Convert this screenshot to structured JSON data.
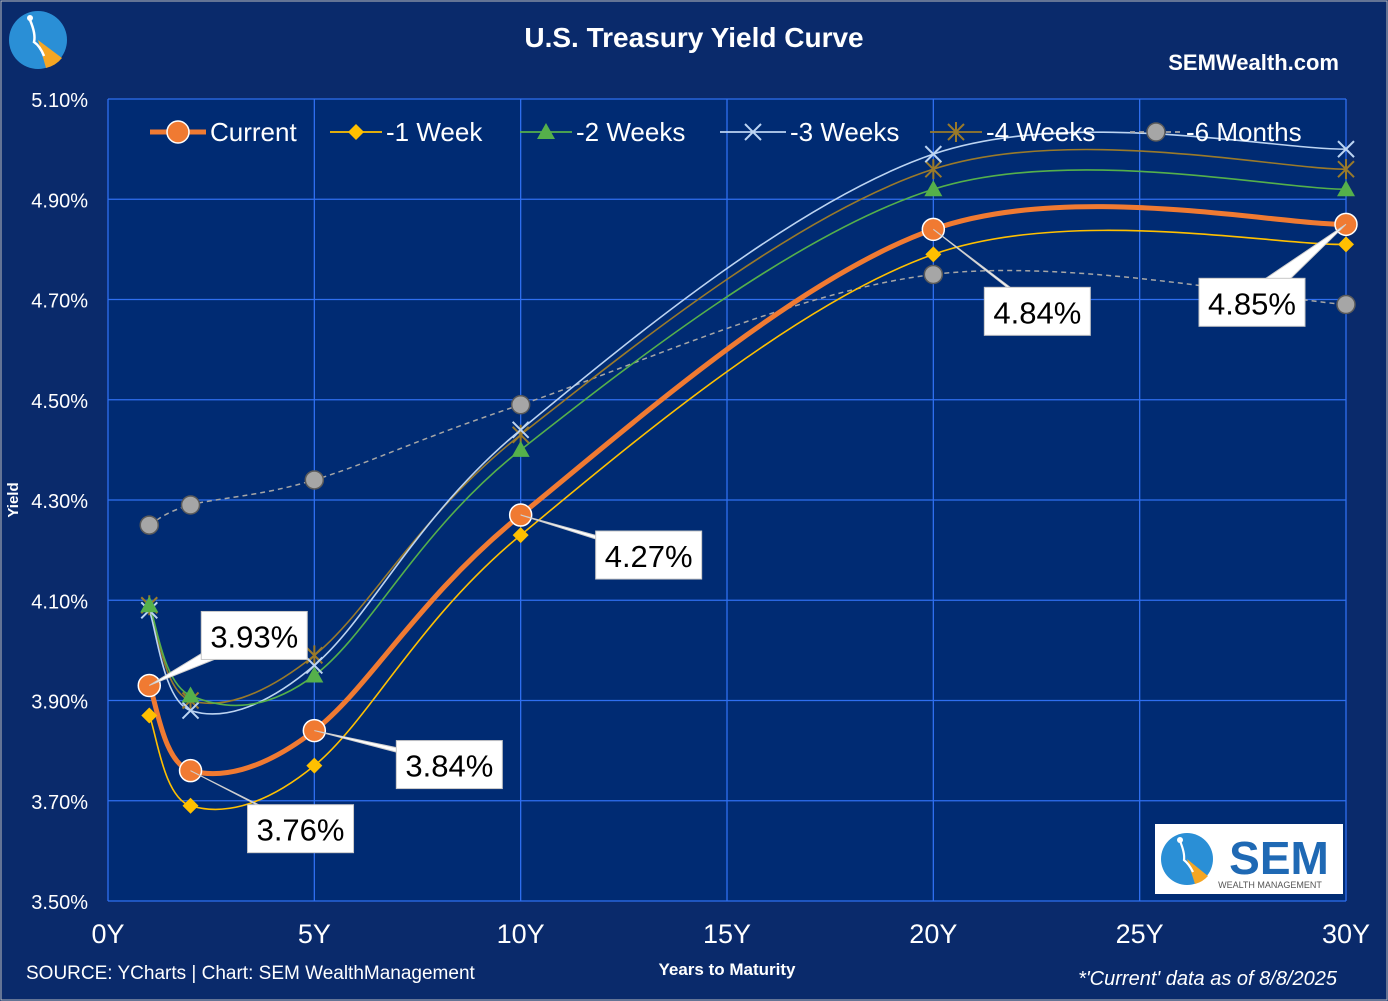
{
  "header": {
    "brand_site": "SEMWealth.com"
  },
  "footer": {
    "source": "SOURCE: YCharts | Chart: SEM WealthManagement",
    "asof": "*'Current' data as of 8/8/2025"
  },
  "logo": {
    "text": "SEM",
    "subtext": "WEALTH MANAGEMENT"
  },
  "colors": {
    "background": "#0a2a6b",
    "plot_background": "#002b73",
    "grid": "#2f6ff0",
    "current": "#f07a32",
    "week1": "#ffc000",
    "week2": "#55b04b",
    "week3": "#bcd4f2",
    "week4": "#9a7a2a",
    "month6": "#a6a6a6"
  },
  "chart_data": {
    "type": "line",
    "title": "U.S. Treasury Yield Curve",
    "xlabel": "Years to Maturity",
    "ylabel": "Yield",
    "xlim": [
      0,
      30
    ],
    "ylim": [
      3.5,
      5.1
    ],
    "x_ticks": [
      0,
      5,
      10,
      15,
      20,
      25,
      30
    ],
    "x_tick_labels": [
      "0Y",
      "5Y",
      "10Y",
      "15Y",
      "20Y",
      "25Y",
      "30Y"
    ],
    "y_ticks": [
      3.5,
      3.7,
      3.9,
      4.1,
      4.3,
      4.5,
      4.7,
      4.9,
      5.1
    ],
    "y_tick_labels": [
      "3.50%",
      "3.70%",
      "3.90%",
      "4.10%",
      "4.30%",
      "4.50%",
      "4.70%",
      "4.90%",
      "5.10%"
    ],
    "grid": true,
    "legend_position": "top",
    "x": [
      1,
      2,
      5,
      10,
      20,
      30
    ],
    "series": [
      {
        "name": "Current",
        "values": [
          3.93,
          3.76,
          3.84,
          4.27,
          4.84,
          4.85
        ],
        "marker": "circle-large",
        "color": "#f07a32"
      },
      {
        "name": "-1 Week",
        "values": [
          3.87,
          3.69,
          3.77,
          4.23,
          4.79,
          4.81
        ],
        "marker": "diamond",
        "color": "#ffc000"
      },
      {
        "name": "-2 Weeks",
        "values": [
          4.09,
          3.91,
          3.95,
          4.4,
          4.92,
          4.92
        ],
        "marker": "triangle",
        "color": "#55b04b"
      },
      {
        "name": "-3 Weeks",
        "values": [
          4.08,
          3.88,
          3.97,
          4.44,
          4.99,
          5.0
        ],
        "marker": "x",
        "color": "#bcd4f2"
      },
      {
        "name": "-4 Weeks",
        "values": [
          4.09,
          3.9,
          3.99,
          4.43,
          4.96,
          4.96
        ],
        "marker": "star",
        "color": "#9a7a2a"
      },
      {
        "name": "-6 Months",
        "values": [
          4.25,
          4.29,
          4.34,
          4.49,
          4.75,
          4.69
        ],
        "marker": "circle",
        "color": "#a6a6a6"
      }
    ],
    "annotations": [
      "3.93%",
      "3.76%",
      "3.84%",
      "4.27%",
      "4.84%",
      "4.85%"
    ]
  }
}
